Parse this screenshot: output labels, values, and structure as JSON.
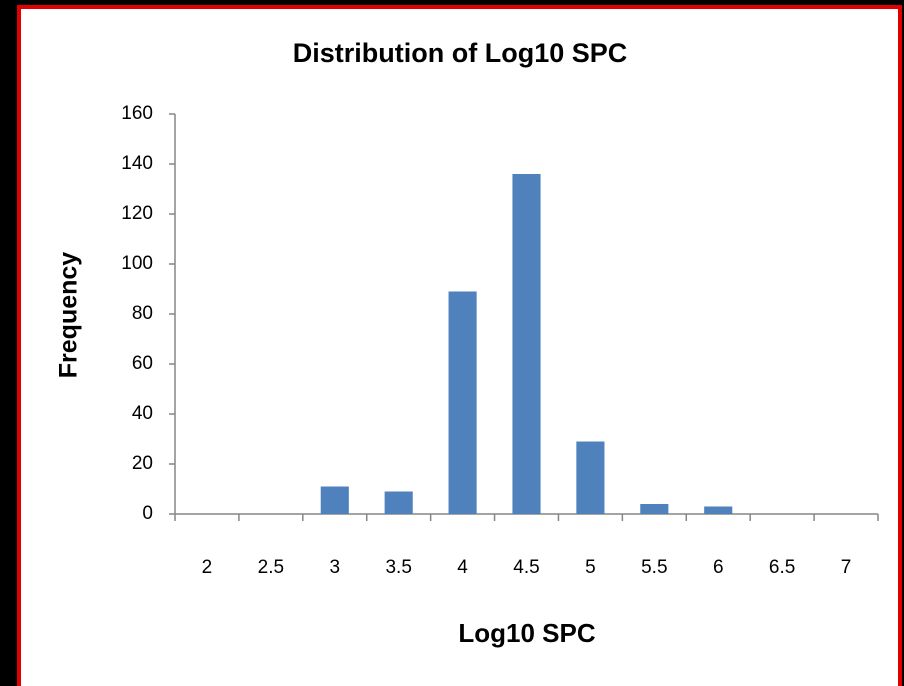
{
  "chart_data": {
    "type": "bar",
    "title": "Distribution of Log10 SPC",
    "x_label": "Log10 SPC",
    "y_label": "Frequency",
    "categories": [
      "2",
      "2.5",
      "3",
      "3.5",
      "4",
      "4.5",
      "5",
      "5.5",
      "6",
      "6.5",
      "7"
    ],
    "values": [
      0,
      0,
      11,
      9,
      89,
      136,
      29,
      4,
      3,
      0,
      0
    ],
    "color": "#4f81bd",
    "ylim": [
      0,
      160
    ],
    "yticks": [
      0,
      20,
      40,
      60,
      80,
      100,
      120,
      140,
      160
    ],
    "grid": false
  }
}
